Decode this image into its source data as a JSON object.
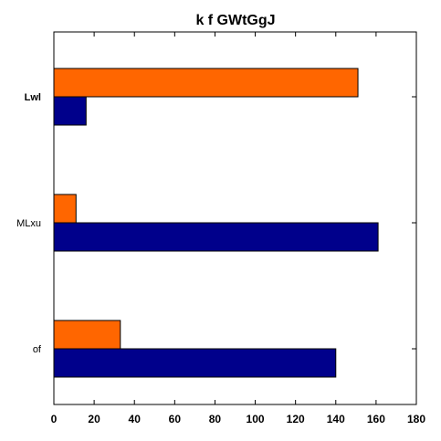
{
  "chart_data": {
    "type": "bar",
    "orientation": "horizontal",
    "title": "k f GWtGgJ",
    "xlabel": "",
    "ylabel": "",
    "categories": [
      "of",
      "MLxu",
      "Lwl"
    ],
    "category_bold": [
      false,
      false,
      true
    ],
    "series": [
      {
        "color": "#00008b",
        "values": [
          140,
          161,
          16
        ]
      },
      {
        "color": "#ff6600",
        "values": [
          33,
          11,
          151
        ]
      }
    ],
    "xlim": [
      0,
      180
    ],
    "xticks": [
      "0",
      "20",
      "40",
      "60",
      "80",
      "100",
      "120",
      "140",
      "160",
      "180"
    ],
    "grid": false,
    "legend": "none"
  }
}
